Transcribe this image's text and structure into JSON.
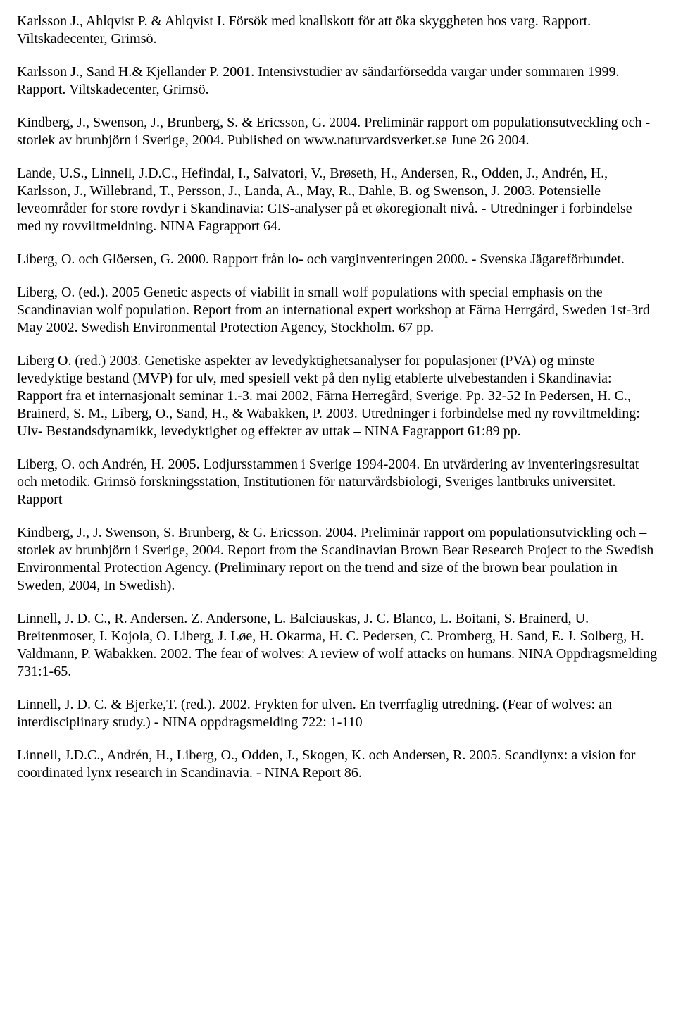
{
  "references": [
    "Karlsson J., Ahlqvist P. & Ahlqvist I. Försök med knallskott för att öka skyggheten hos varg. Rapport. Viltskadecenter, Grimsö.",
    "Karlsson J., Sand H.& Kjellander P. 2001. Intensivstudier av sändarförsedda vargar under sommaren 1999. Rapport. Viltskadecenter, Grimsö.",
    "Kindberg, J., Swenson, J., Brunberg, S. & Ericsson, G. 2004. Preliminär rapport om populationsutveckling och -storlek av brunbjörn i Sverige, 2004. Published on www.naturvardsverket.se June 26 2004.",
    "Lande, U.S., Linnell, J.D.C., Hefindal, I., Salvatori, V., Brøseth, H., Andersen, R., Odden, J., Andrén, H., Karlsson, J., Willebrand, T., Persson, J., Landa, A., May, R., Dahle, B. og Swenson, J. 2003. Potensielle leveområder for store rovdyr i Skandinavia: GIS-analyser på et økoregionalt nivå. - Utredninger i forbindelse med ny rovviltmeldning. NINA Fagrapport 64.",
    "Liberg, O. och Glöersen, G. 2000. Rapport från lo- och varginventeringen 2000. - Svenska Jägareförbundet.",
    "Liberg, O. (ed.). 2005 Genetic aspects of viabilit in small wolf populations with special emphasis on the Scandinavian wolf population. Report from an international expert workshop at Färna Herrgård, Sweden 1st-3rd May 2002. Swedish Environmental Protection Agency, Stockholm. 67 pp.",
    "Liberg O. (red.) 2003. Genetiske aspekter av levedyktighetsanalyser for populasjoner (PVA) og minste levedyktige bestand (MVP) for ulv, med spesiell vekt på den nylig etablerte ulvebestanden i Skandinavia: Rapport fra et internasjonalt seminar 1.-3. mai 2002, Färna Herregård, Sverige.  Pp. 32-52 In Pedersen, H. C., Brainerd, S. M., Liberg, O., Sand, H., & Wabakken, P. 2003. Utredninger i forbindelse med ny rovviltmelding: Ulv- Bestandsdynamikk, levedyktighet og effekter av uttak – NINA Fagrapport 61:89 pp.",
    "Liberg, O. och Andrén, H. 2005. Lodjursstammen i Sverige 1994-2004. En utvärdering av inventeringsresultat och metodik. Grimsö forskningsstation, Institutionen för naturvårdsbiologi, Sveriges lantbruks universitet. Rapport",
    "Kindberg, J., J. Swenson, S. Brunberg, & G. Ericsson.  2004.  Preliminär rapport om populationsutvickling och –storlek av brunbjörn i Sverige, 2004.  Report from the Scandinavian Brown Bear Research Project to the Swedish Environmental Protection Agency. (Preliminary report on the trend and size of the brown bear poulation in Sweden, 2004, In Swedish).",
    "Linnell, J. D. C., R. Andersen. Z. Andersone, L. Balciauskas, J. C. Blanco, L. Boitani, S. Brainerd, U. Breitenmoser, I. Kojola, O. Liberg, J. Løe, H. Okarma, H. C. Pedersen, C. Promberg, H. Sand, E. J. Solberg, H. Valdmann, P. Wabakken. 2002. The fear of wolves: A review of wolf attacks on humans. NINA Oppdragsmelding 731:1-65.",
    "Linnell, J. D. C. & Bjerke,T. (red.). 2002. Frykten for ulven. En tverrfaglig utredning. (Fear of wolves: an interdisciplinary study.) - NINA oppdragsmelding 722: 1-110",
    "Linnell, J.D.C., Andrén, H., Liberg, O., Odden, J., Skogen, K. och Andersen, R. 2005. Scandlynx: a vision for coordinated lynx research in Scandinavia. - NINA Report 86."
  ]
}
